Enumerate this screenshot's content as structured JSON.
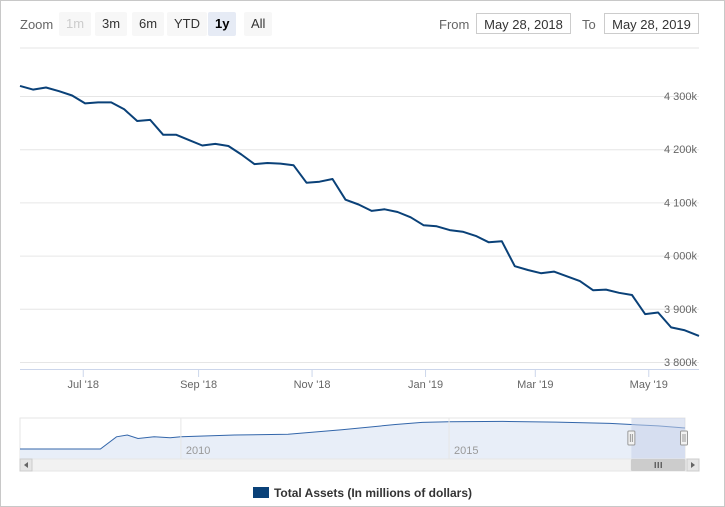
{
  "toolbar": {
    "zoom_label": "Zoom",
    "buttons": [
      {
        "label": "1m",
        "state": "disabled"
      },
      {
        "label": "3m",
        "state": "normal"
      },
      {
        "label": "6m",
        "state": "normal"
      },
      {
        "label": "YTD",
        "state": "normal"
      },
      {
        "label": "1y",
        "state": "active"
      },
      {
        "label": "All",
        "state": "normal"
      }
    ],
    "from_label": "From",
    "from_value": "May 28, 2018",
    "to_label": "To",
    "to_value": "May 28, 2019"
  },
  "colors": {
    "series": "#0a4178",
    "navigator_fill": "#e8eef8",
    "navigator_mask": "#c6d2ea",
    "grid": "#e6e6e6"
  },
  "chart_data": {
    "type": "line",
    "title": "",
    "xlabel": "",
    "ylabel": "",
    "x_ticks": [
      "Jul '18",
      "Sep '18",
      "Nov '18",
      "Jan '19",
      "Mar '19",
      "May '19"
    ],
    "y_ticks": [
      "4 300k",
      "4 200k",
      "4 100k",
      "4 000k",
      "3 900k",
      "3 800k"
    ],
    "ylim": [
      3800000,
      4300000
    ],
    "grid": true,
    "legend_position": "bottom",
    "series": [
      {
        "name": "Total Assets (In millions of dollars)",
        "points": [
          [
            "2018-05-28",
            4319000
          ],
          [
            "2018-06-04",
            4312000
          ],
          [
            "2018-06-11",
            4316000
          ],
          [
            "2018-06-18",
            4309000
          ],
          [
            "2018-06-25",
            4301000
          ],
          [
            "2018-07-02",
            4286000
          ],
          [
            "2018-07-09",
            4288000
          ],
          [
            "2018-07-16",
            4288000
          ],
          [
            "2018-07-23",
            4275000
          ],
          [
            "2018-07-30",
            4253000
          ],
          [
            "2018-08-06",
            4255000
          ],
          [
            "2018-08-13",
            4227000
          ],
          [
            "2018-08-20",
            4227000
          ],
          [
            "2018-08-27",
            4217000
          ],
          [
            "2018-09-03",
            4207000
          ],
          [
            "2018-09-10",
            4210000
          ],
          [
            "2018-09-17",
            4206000
          ],
          [
            "2018-09-24",
            4190000
          ],
          [
            "2018-10-01",
            4172000
          ],
          [
            "2018-10-08",
            4174000
          ],
          [
            "2018-10-15",
            4173000
          ],
          [
            "2018-10-22",
            4170000
          ],
          [
            "2018-10-29",
            4137000
          ],
          [
            "2018-11-05",
            4139000
          ],
          [
            "2018-11-12",
            4144000
          ],
          [
            "2018-11-19",
            4105000
          ],
          [
            "2018-11-26",
            4096000
          ],
          [
            "2018-12-03",
            4084000
          ],
          [
            "2018-12-10",
            4087000
          ],
          [
            "2018-12-17",
            4082000
          ],
          [
            "2018-12-24",
            4072000
          ],
          [
            "2018-12-31",
            4057000
          ],
          [
            "2019-01-07",
            4055000
          ],
          [
            "2019-01-14",
            4048000
          ],
          [
            "2019-01-21",
            4045000
          ],
          [
            "2019-01-28",
            4037000
          ],
          [
            "2019-02-04",
            4025000
          ],
          [
            "2019-02-11",
            4027000
          ],
          [
            "2019-02-18",
            3980000
          ],
          [
            "2019-02-25",
            3973000
          ],
          [
            "2019-03-04",
            3967000
          ],
          [
            "2019-03-11",
            3970000
          ],
          [
            "2019-03-18",
            3961000
          ],
          [
            "2019-03-25",
            3952000
          ],
          [
            "2019-04-01",
            3935000
          ],
          [
            "2019-04-08",
            3936000
          ],
          [
            "2019-04-15",
            3930000
          ],
          [
            "2019-04-22",
            3926000
          ],
          [
            "2019-04-29",
            3890000
          ],
          [
            "2019-05-06",
            3893000
          ],
          [
            "2019-05-13",
            3865000
          ],
          [
            "2019-05-20",
            3860000
          ],
          [
            "2019-05-28",
            3849000
          ]
        ]
      }
    ],
    "navigator": {
      "x_ticks": [
        "2010",
        "2015"
      ],
      "series": [
        [
          2007.0,
          0.2
        ],
        [
          2008.5,
          0.2
        ],
        [
          2008.8,
          0.55
        ],
        [
          2009.0,
          0.6
        ],
        [
          2009.2,
          0.5
        ],
        [
          2009.5,
          0.55
        ],
        [
          2009.8,
          0.52
        ],
        [
          2010.0,
          0.55
        ],
        [
          2011.0,
          0.6
        ],
        [
          2012.0,
          0.62
        ],
        [
          2013.0,
          0.75
        ],
        [
          2014.0,
          0.9
        ],
        [
          2014.5,
          0.96
        ],
        [
          2015.0,
          0.98
        ],
        [
          2016.0,
          0.99
        ],
        [
          2017.0,
          0.97
        ],
        [
          2018.0,
          0.93
        ],
        [
          2018.9,
          0.86
        ],
        [
          2019.4,
          0.8
        ]
      ],
      "selected_range": [
        2018.4,
        2019.4
      ],
      "full_range": [
        2007.0,
        2019.4
      ]
    }
  }
}
